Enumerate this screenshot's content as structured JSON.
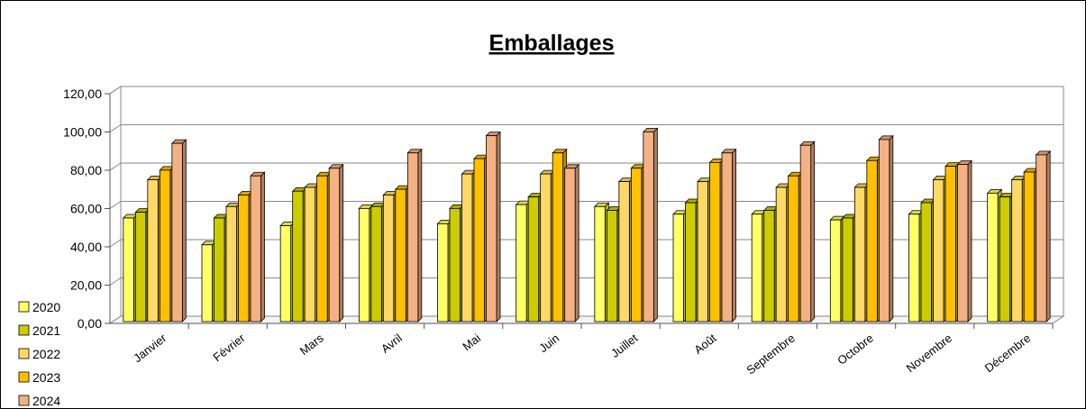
{
  "chart_data": {
    "type": "bar",
    "title": "Emballages",
    "categories": [
      "Janvier",
      "Février",
      "Mars",
      "Avril",
      "Mai",
      "Juin",
      "Juillet",
      "Août",
      "Septembre",
      "Octobre",
      "Novembre",
      "Décembre"
    ],
    "series": [
      {
        "name": "2020",
        "color": "#FFFF66",
        "values": [
          56,
          42,
          52,
          61,
          53,
          63,
          62,
          58,
          58,
          55,
          58,
          69
        ]
      },
      {
        "name": "2021",
        "color": "#CCCC00",
        "values": [
          59,
          56,
          70,
          62,
          61,
          67,
          60,
          64,
          60,
          56,
          64,
          67
        ]
      },
      {
        "name": "2022",
        "color": "#FFD966",
        "values": [
          76,
          62,
          72,
          68,
          79,
          79,
          75,
          75,
          72,
          72,
          76,
          76
        ]
      },
      {
        "name": "2023",
        "color": "#FFC000",
        "values": [
          81,
          68,
          78,
          71,
          87,
          90,
          82,
          85,
          78,
          86,
          83,
          80
        ]
      },
      {
        "name": "2024",
        "color": "#F4B183",
        "values": [
          95,
          78,
          82,
          90,
          99,
          82,
          101,
          90,
          94,
          97,
          84,
          89
        ]
      }
    ],
    "y_ticks": [
      "0,00",
      "20,00",
      "40,00",
      "60,00",
      "80,00",
      "100,00",
      "120,00"
    ],
    "ylim": [
      0,
      120
    ],
    "grid": true,
    "legend_position": "left-bottom"
  }
}
